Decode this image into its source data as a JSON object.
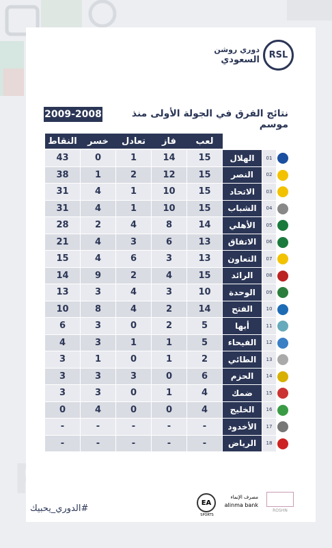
{
  "header": {
    "logo_abbr": "RSL",
    "logo_line1": "دوري روشن",
    "logo_line2": "السعودي",
    "title": "نتائج الفرق في الجولة الأولى منذ موسم",
    "season": "2009-2008"
  },
  "table": {
    "columns": [
      "لعب",
      "فاز",
      "تعادل",
      "خسر",
      "النقاط"
    ],
    "rows": [
      [
        "01",
        "الهلال",
        15,
        14,
        1,
        0,
        43
      ],
      [
        "02",
        "النصر",
        15,
        12,
        2,
        1,
        38
      ],
      [
        "03",
        "الاتحاد",
        15,
        10,
        1,
        4,
        31
      ],
      [
        "04",
        "الشباب",
        15,
        10,
        1,
        4,
        31
      ],
      [
        "05",
        "الأهلي",
        14,
        8,
        4,
        2,
        28
      ],
      [
        "06",
        "الاتفاق",
        13,
        6,
        3,
        4,
        21
      ],
      [
        "07",
        "التعاون",
        13,
        3,
        6,
        4,
        15
      ],
      [
        "08",
        "الرائد",
        15,
        4,
        2,
        9,
        14
      ],
      [
        "09",
        "الوحدة",
        10,
        3,
        4,
        3,
        13
      ],
      [
        "10",
        "الفتح",
        14,
        2,
        4,
        8,
        10
      ],
      [
        "11",
        "أبها",
        5,
        2,
        0,
        3,
        6
      ],
      [
        "12",
        "الفيحاء",
        5,
        1,
        1,
        3,
        4
      ],
      [
        "13",
        "الطائي",
        2,
        1,
        0,
        1,
        3
      ],
      [
        "14",
        "الحزم",
        6,
        0,
        3,
        3,
        3
      ],
      [
        "15",
        "ضمك",
        4,
        1,
        0,
        3,
        3
      ],
      [
        "16",
        "الخليج",
        4,
        0,
        0,
        4,
        0
      ],
      [
        "17",
        "الأخدود",
        "-",
        "-",
        "-",
        "-",
        "-"
      ],
      [
        "18",
        "الرياض",
        "-",
        "-",
        "-",
        "-",
        "-"
      ]
    ]
  },
  "footer": {
    "hashtag": "#الدوري_يحبيك",
    "bank_ar": "مصرف الإنماء",
    "bank_en": "alinma bank",
    "ea": "EA",
    "ea_sub": "SPORTS",
    "roshn": "ROSHN"
  }
}
